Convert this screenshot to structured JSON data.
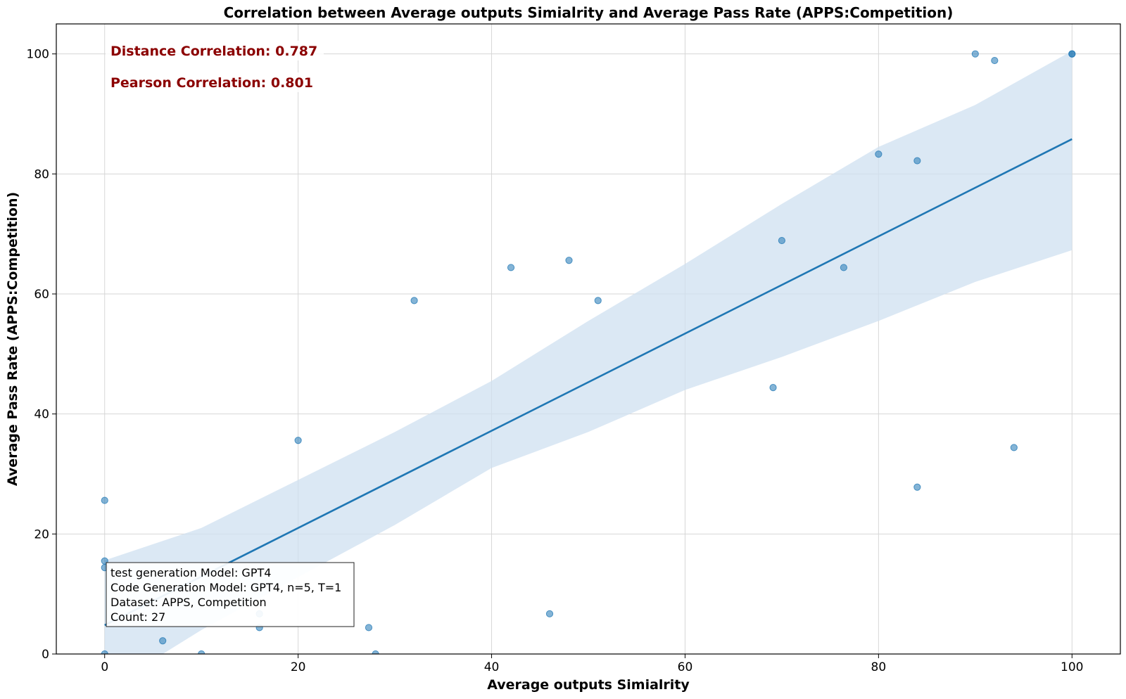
{
  "chart_data": {
    "type": "scatter",
    "title": "Correlation between Average outputs Simialrity and Average Pass Rate (APPS:Competition)",
    "xlabel": "Average outputs Simialrity",
    "ylabel": "Average Pass Rate (APPS:Competition)",
    "xlim": [
      -5,
      105
    ],
    "ylim": [
      0,
      105
    ],
    "xticks": [
      0,
      20,
      40,
      60,
      80,
      100
    ],
    "yticks": [
      0,
      20,
      40,
      60,
      80,
      100
    ],
    "grid": true,
    "point_color": "#1f77b4",
    "line_color": "#1f77b4",
    "band_color": "#cfe0f0",
    "points": [
      {
        "x": 0,
        "y": 25.6
      },
      {
        "x": 0,
        "y": 15.5
      },
      {
        "x": 0,
        "y": 14.4
      },
      {
        "x": 0,
        "y": 0
      },
      {
        "x": 6,
        "y": 2.2
      },
      {
        "x": 10,
        "y": 0
      },
      {
        "x": 16,
        "y": 6.7
      },
      {
        "x": 16,
        "y": 4.4
      },
      {
        "x": 20,
        "y": 35.6
      },
      {
        "x": 27.3,
        "y": 4.4
      },
      {
        "x": 28,
        "y": 0
      },
      {
        "x": 32,
        "y": 58.9
      },
      {
        "x": 42,
        "y": 64.4
      },
      {
        "x": 46,
        "y": 6.7
      },
      {
        "x": 48,
        "y": 65.6
      },
      {
        "x": 51,
        "y": 58.9
      },
      {
        "x": 69.1,
        "y": 44.4
      },
      {
        "x": 70,
        "y": 68.9
      },
      {
        "x": 76.4,
        "y": 64.4
      },
      {
        "x": 80,
        "y": 83.3
      },
      {
        "x": 84,
        "y": 82.2
      },
      {
        "x": 84,
        "y": 27.8
      },
      {
        "x": 90,
        "y": 100
      },
      {
        "x": 92,
        "y": 98.9
      },
      {
        "x": 94,
        "y": 34.4
      },
      {
        "x": 100,
        "y": 100
      },
      {
        "x": 100,
        "y": 100
      }
    ],
    "regression_line": [
      {
        "x": 0,
        "y": 4.8
      },
      {
        "x": 100,
        "y": 85.8
      }
    ],
    "confidence_band": {
      "upper": [
        {
          "x": 0,
          "y": 15.6
        },
        {
          "x": 10,
          "y": 21.0
        },
        {
          "x": 20,
          "y": 29.0
        },
        {
          "x": 30,
          "y": 37.0
        },
        {
          "x": 40,
          "y": 45.5
        },
        {
          "x": 50,
          "y": 55.5
        },
        {
          "x": 60,
          "y": 65.0
        },
        {
          "x": 70,
          "y": 75.0
        },
        {
          "x": 80,
          "y": 84.5
        },
        {
          "x": 90,
          "y": 91.5
        },
        {
          "x": 100,
          "y": 100.5
        }
      ],
      "lower": [
        {
          "x": 0,
          "y": -6.0
        },
        {
          "x": 10,
          "y": 4.0
        },
        {
          "x": 20,
          "y": 12.8
        },
        {
          "x": 30,
          "y": 21.5
        },
        {
          "x": 40,
          "y": 31.0
        },
        {
          "x": 50,
          "y": 37.0
        },
        {
          "x": 60,
          "y": 44.0
        },
        {
          "x": 70,
          "y": 49.5
        },
        {
          "x": 80,
          "y": 55.5
        },
        {
          "x": 90,
          "y": 62.0
        },
        {
          "x": 100,
          "y": 67.3
        }
      ]
    },
    "annotations": {
      "distance_correlation": "Distance Correlation: 0.787",
      "pearson_correlation": "Pearson Correlation: 0.801",
      "annotation_color": "#8b0000"
    },
    "info_box": [
      "test generation Model: GPT4",
      "Code Generation Model: GPT4, n=5, T=1",
      "Dataset: APPS, Competition",
      "Count: 27"
    ]
  }
}
